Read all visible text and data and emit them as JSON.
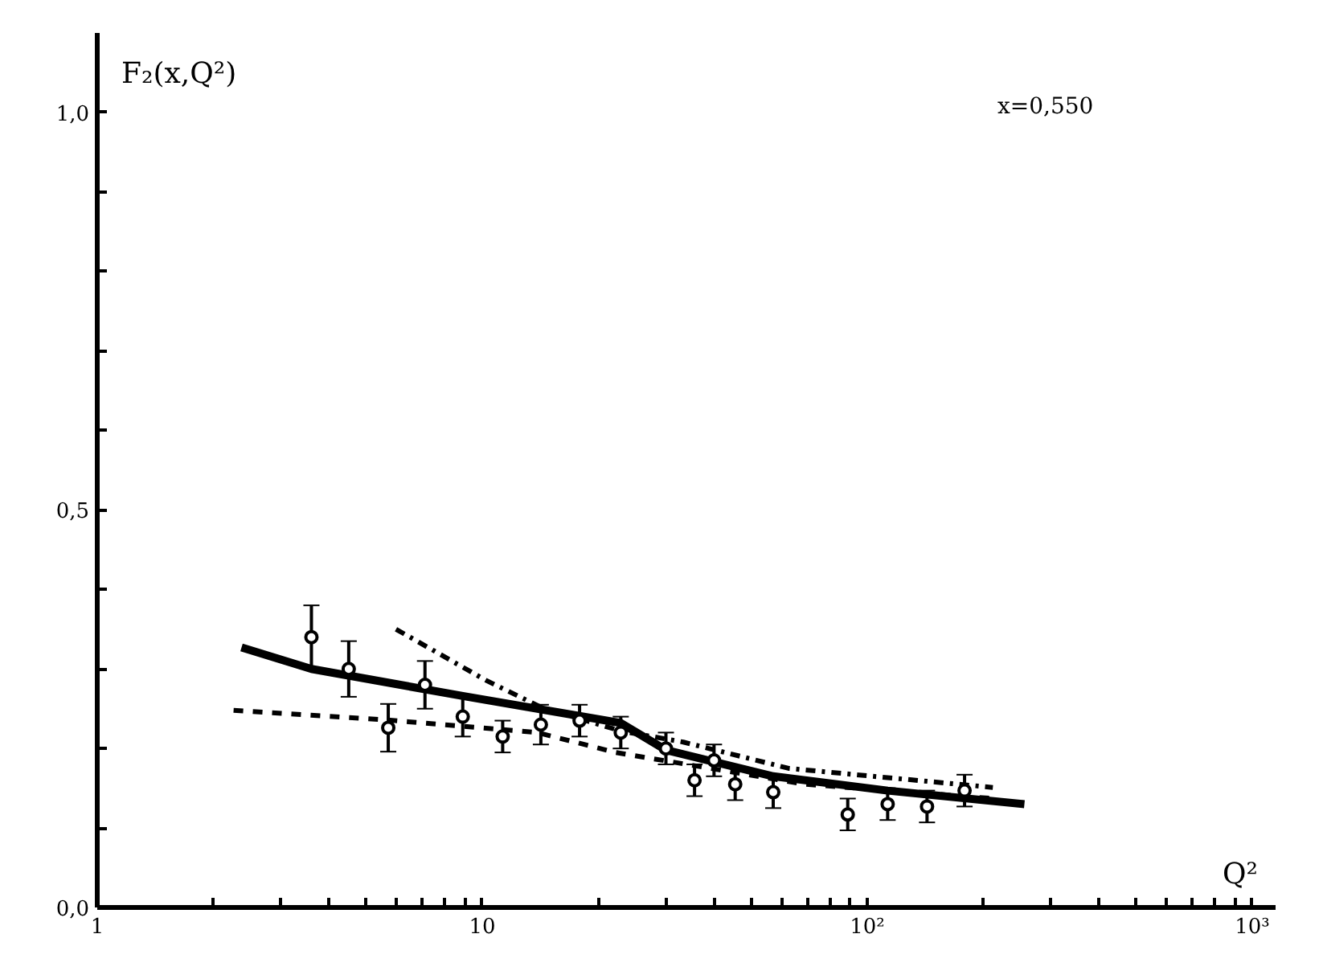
{
  "chart_data": {
    "type": "scatter",
    "xlabel": "Q²",
    "ylabel": "F₂(x,Q²)",
    "log": "x",
    "grid": false,
    "annotations": [
      "x=0,550"
    ],
    "xlim": [
      1,
      1150
    ],
    "ylim": [
      0,
      1.1
    ],
    "xticks": [
      {
        "value": 1,
        "label": "1"
      },
      {
        "value": 2,
        "label": null
      },
      {
        "value": 3,
        "label": null
      },
      {
        "value": 4,
        "label": null
      },
      {
        "value": 5,
        "label": null
      },
      {
        "value": 6,
        "label": null
      },
      {
        "value": 7,
        "label": null
      },
      {
        "value": 8,
        "label": null
      },
      {
        "value": 9,
        "label": null
      },
      {
        "value": 10,
        "label": "10"
      },
      {
        "value": 20,
        "label": null
      },
      {
        "value": 30,
        "label": null
      },
      {
        "value": 40,
        "label": null
      },
      {
        "value": 50,
        "label": null
      },
      {
        "value": 60,
        "label": null
      },
      {
        "value": 70,
        "label": null
      },
      {
        "value": 80,
        "label": null
      },
      {
        "value": 90,
        "label": null
      },
      {
        "value": 100,
        "label": "10²"
      },
      {
        "value": 200,
        "label": null
      },
      {
        "value": 300,
        "label": null
      },
      {
        "value": 400,
        "label": null
      },
      {
        "value": 500,
        "label": null
      },
      {
        "value": 600,
        "label": null
      },
      {
        "value": 700,
        "label": null
      },
      {
        "value": 800,
        "label": null
      },
      {
        "value": 900,
        "label": null
      },
      {
        "value": 1000,
        "label": "10³"
      }
    ],
    "yticks": [
      {
        "value": 0,
        "label": "0,0"
      },
      {
        "value": 0.1,
        "label": null
      },
      {
        "value": 0.2,
        "label": null
      },
      {
        "value": 0.3,
        "label": null
      },
      {
        "value": 0.4,
        "label": null
      },
      {
        "value": 0.5,
        "label": "0,5"
      },
      {
        "value": 0.6,
        "label": null
      },
      {
        "value": 0.7,
        "label": null
      },
      {
        "value": 0.8,
        "label": null
      },
      {
        "value": 0.9,
        "label": null
      },
      {
        "value": 1.0,
        "label": "1,0"
      }
    ],
    "series": [
      {
        "color": "#000000",
        "marker": "circle",
        "x": [
          3.6,
          4.5,
          5.7,
          7.1,
          8.9,
          11.3,
          14.2,
          17.9,
          22.9,
          30,
          40,
          35.6,
          45.4,
          57,
          89,
          113,
          143,
          179
        ],
        "values": [
          0.34,
          0.3,
          0.226,
          0.28,
          0.24,
          0.215,
          0.23,
          0.235,
          0.22,
          0.2,
          0.185,
          0.16,
          0.155,
          0.145,
          0.117,
          0.13,
          0.127,
          0.147
        ],
        "errors": [
          0.04,
          0.035,
          0.03,
          0.03,
          0.025,
          0.02,
          0.025,
          0.02,
          0.02,
          0.02,
          0.02,
          0.02,
          0.02,
          0.02,
          0.02,
          0.02,
          0.02,
          0.02
        ]
      },
      {
        "type": "line",
        "color": "#000000",
        "line_style": "solid",
        "x": [
          2.37,
          3.6,
          8.9,
          22.9,
          30,
          57,
          113,
          256
        ],
        "values": [
          0.327,
          0.3,
          0.266,
          0.232,
          0.198,
          0.165,
          0.147,
          0.13
        ]
      },
      {
        "type": "line",
        "color": "#000000",
        "line_style": "dashed",
        "x": [
          2.26,
          5.6,
          13.9,
          22.2,
          69,
          213
        ],
        "values": [
          0.248,
          0.236,
          0.22,
          0.195,
          0.155,
          0.137
        ]
      },
      {
        "type": "line",
        "color": "#000000",
        "line_style": "dashdot",
        "x": [
          5.97,
          10.2,
          14.2,
          22.9,
          33.3,
          62.5,
          93.5,
          212
        ],
        "values": [
          0.35,
          0.286,
          0.252,
          0.222,
          0.208,
          0.175,
          0.167,
          0.151
        ]
      }
    ]
  }
}
